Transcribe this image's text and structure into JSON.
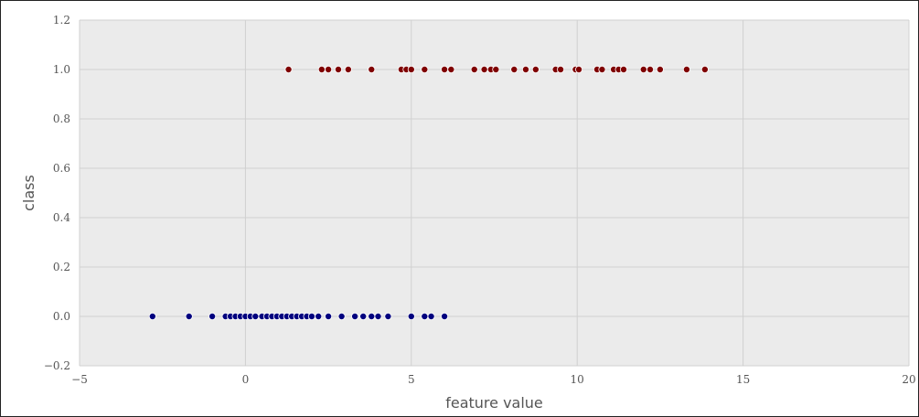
{
  "chart_data": {
    "type": "scatter",
    "xlabel": "feature value",
    "ylabel": "class",
    "xlim": [
      -5,
      20
    ],
    "ylim": [
      -0.2,
      1.2
    ],
    "x_ticks": [
      -5,
      0,
      5,
      10,
      15,
      20
    ],
    "y_ticks": [
      -0.2,
      0.0,
      0.2,
      0.4,
      0.6,
      0.8,
      1.0,
      1.2
    ],
    "x_tick_labels": [
      "−5",
      "0",
      "5",
      "10",
      "15",
      "20"
    ],
    "y_tick_labels": [
      "−0.2",
      "0.0",
      "0.2",
      "0.4",
      "0.6",
      "0.8",
      "1.0",
      "1.2"
    ],
    "grid": true,
    "series": [
      {
        "color": "#00007f",
        "y": 0,
        "x": [
          -2.8,
          -1.7,
          -1.0,
          -0.6,
          -0.45,
          -0.3,
          -0.15,
          0.0,
          0.15,
          0.3,
          0.5,
          0.65,
          0.8,
          0.95,
          1.1,
          1.25,
          1.4,
          1.55,
          1.7,
          1.85,
          2.0,
          2.2,
          2.5,
          2.9,
          3.3,
          3.55,
          3.8,
          4.0,
          4.3,
          5.0,
          5.4,
          5.6,
          6.0
        ]
      },
      {
        "color": "#7f0000",
        "y": 1,
        "x": [
          1.3,
          2.3,
          2.5,
          2.8,
          3.1,
          3.8,
          4.7,
          4.85,
          5.0,
          5.4,
          6.0,
          6.2,
          6.9,
          7.2,
          7.4,
          7.55,
          8.1,
          8.45,
          8.75,
          9.35,
          9.5,
          9.95,
          10.05,
          10.6,
          10.75,
          11.1,
          11.25,
          11.4,
          12.0,
          12.2,
          12.5,
          13.3,
          13.85
        ]
      }
    ]
  }
}
